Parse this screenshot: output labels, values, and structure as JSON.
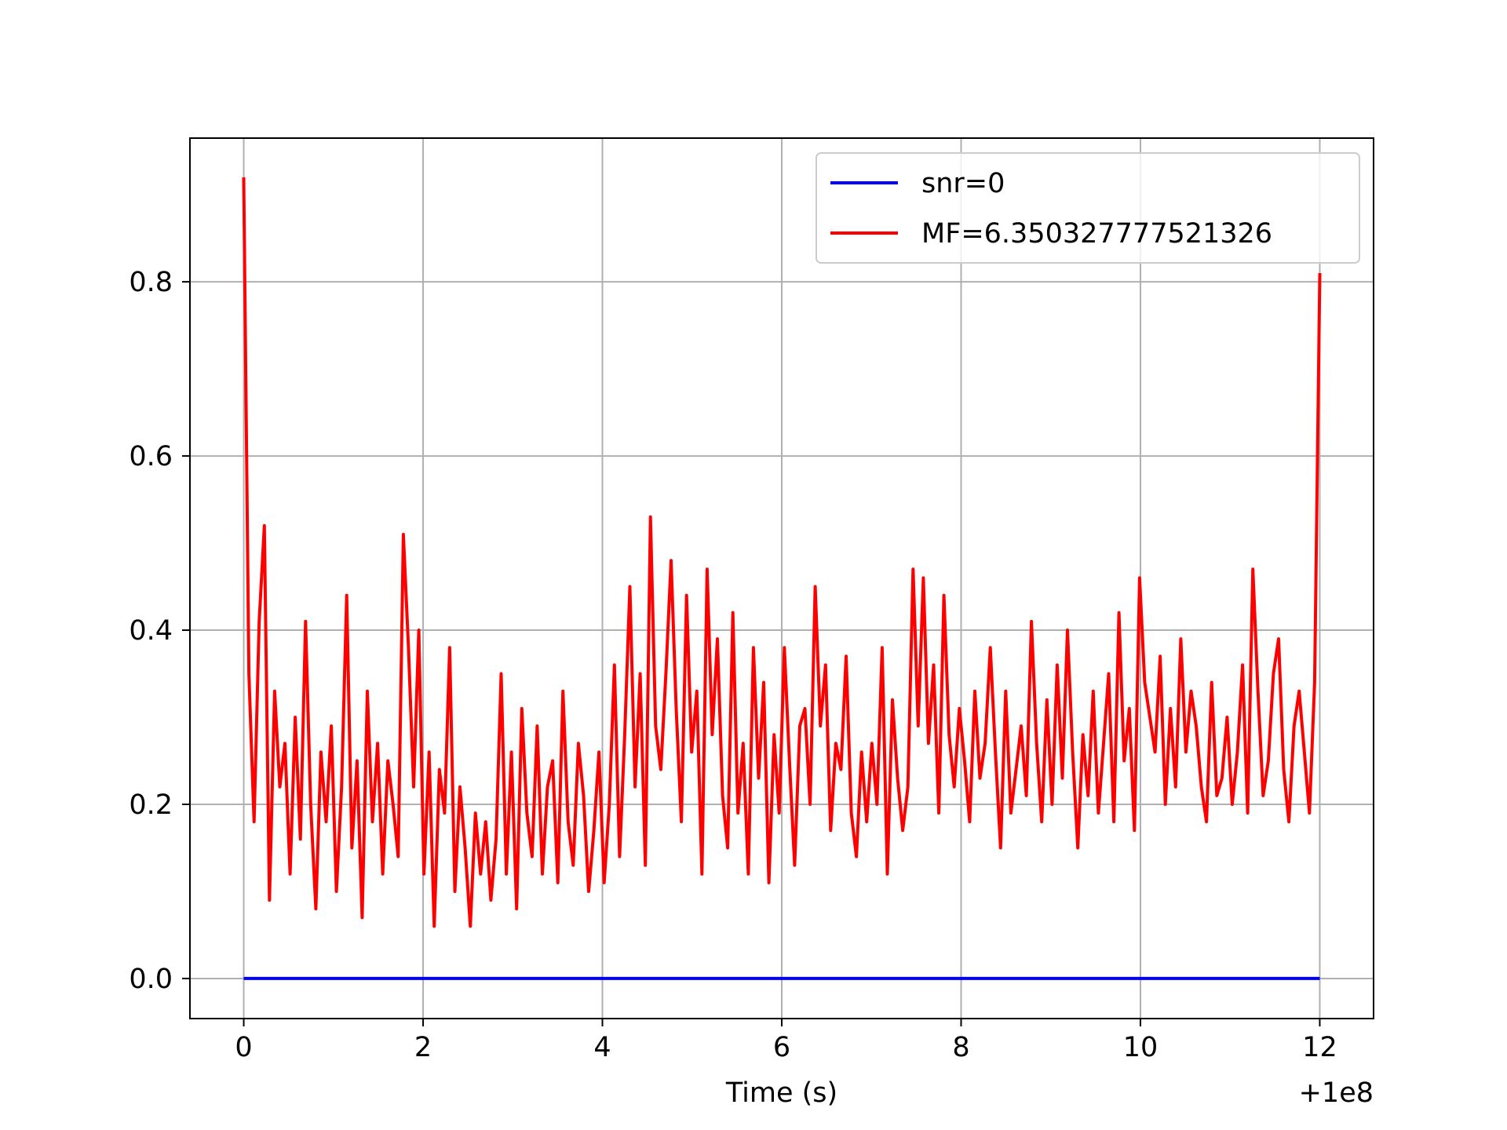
{
  "chart_data": {
    "type": "line",
    "xlabel": "Time (s)",
    "x_offset_label": "+1e8",
    "x_offset": 100000000,
    "xlim": [
      99999999.4,
      100000012.6
    ],
    "ylim": [
      -0.046,
      0.965
    ],
    "xticks": [
      0,
      2,
      4,
      6,
      8,
      10,
      12
    ],
    "xtick_labels": [
      "0",
      "2",
      "4",
      "6",
      "8",
      "10",
      "12"
    ],
    "yticks": [
      0.0,
      0.2,
      0.4,
      0.6,
      0.8
    ],
    "ytick_labels": [
      "0.0",
      "0.2",
      "0.4",
      "0.6",
      "0.8"
    ],
    "grid": true,
    "legend_position": "upper-right",
    "colors": {
      "snr": "#0000ff",
      "mf": "#ff0000",
      "grid": "#b0b0b0",
      "axes": "#000000"
    },
    "series": [
      {
        "name": "snr=0",
        "color": "#0000ff",
        "x": [
          100000000,
          100000012
        ],
        "y": [
          0.0,
          0.0
        ]
      },
      {
        "name": "MF=6.350327777521326",
        "color": "#ff0000",
        "x_start": 100000000,
        "x_end": 100000012,
        "y": [
          0.92,
          0.35,
          0.18,
          0.41,
          0.52,
          0.09,
          0.33,
          0.22,
          0.27,
          0.12,
          0.3,
          0.16,
          0.41,
          0.2,
          0.08,
          0.26,
          0.18,
          0.29,
          0.1,
          0.22,
          0.44,
          0.15,
          0.25,
          0.07,
          0.33,
          0.18,
          0.27,
          0.12,
          0.25,
          0.2,
          0.14,
          0.51,
          0.38,
          0.22,
          0.4,
          0.12,
          0.26,
          0.06,
          0.24,
          0.19,
          0.38,
          0.1,
          0.22,
          0.15,
          0.06,
          0.19,
          0.12,
          0.18,
          0.09,
          0.16,
          0.35,
          0.12,
          0.26,
          0.08,
          0.31,
          0.19,
          0.14,
          0.29,
          0.12,
          0.22,
          0.25,
          0.11,
          0.33,
          0.18,
          0.13,
          0.27,
          0.21,
          0.1,
          0.17,
          0.26,
          0.11,
          0.2,
          0.36,
          0.14,
          0.28,
          0.45,
          0.22,
          0.35,
          0.13,
          0.53,
          0.29,
          0.24,
          0.35,
          0.48,
          0.31,
          0.18,
          0.44,
          0.26,
          0.33,
          0.12,
          0.47,
          0.28,
          0.39,
          0.21,
          0.15,
          0.42,
          0.19,
          0.27,
          0.12,
          0.38,
          0.23,
          0.34,
          0.11,
          0.28,
          0.19,
          0.38,
          0.25,
          0.13,
          0.29,
          0.31,
          0.2,
          0.45,
          0.29,
          0.36,
          0.17,
          0.27,
          0.24,
          0.37,
          0.19,
          0.14,
          0.26,
          0.18,
          0.27,
          0.2,
          0.38,
          0.12,
          0.32,
          0.23,
          0.17,
          0.22,
          0.47,
          0.29,
          0.46,
          0.27,
          0.36,
          0.19,
          0.44,
          0.28,
          0.22,
          0.31,
          0.25,
          0.18,
          0.33,
          0.23,
          0.27,
          0.38,
          0.26,
          0.15,
          0.33,
          0.19,
          0.24,
          0.29,
          0.21,
          0.41,
          0.27,
          0.18,
          0.32,
          0.2,
          0.36,
          0.23,
          0.4,
          0.26,
          0.15,
          0.28,
          0.21,
          0.33,
          0.19,
          0.27,
          0.35,
          0.18,
          0.42,
          0.25,
          0.31,
          0.17,
          0.46,
          0.34,
          0.3,
          0.26,
          0.37,
          0.2,
          0.31,
          0.22,
          0.39,
          0.26,
          0.33,
          0.29,
          0.22,
          0.18,
          0.34,
          0.21,
          0.23,
          0.3,
          0.2,
          0.26,
          0.36,
          0.19,
          0.47,
          0.33,
          0.21,
          0.25,
          0.35,
          0.39,
          0.24,
          0.18,
          0.29,
          0.33,
          0.26,
          0.19,
          0.34,
          0.81
        ]
      }
    ]
  }
}
